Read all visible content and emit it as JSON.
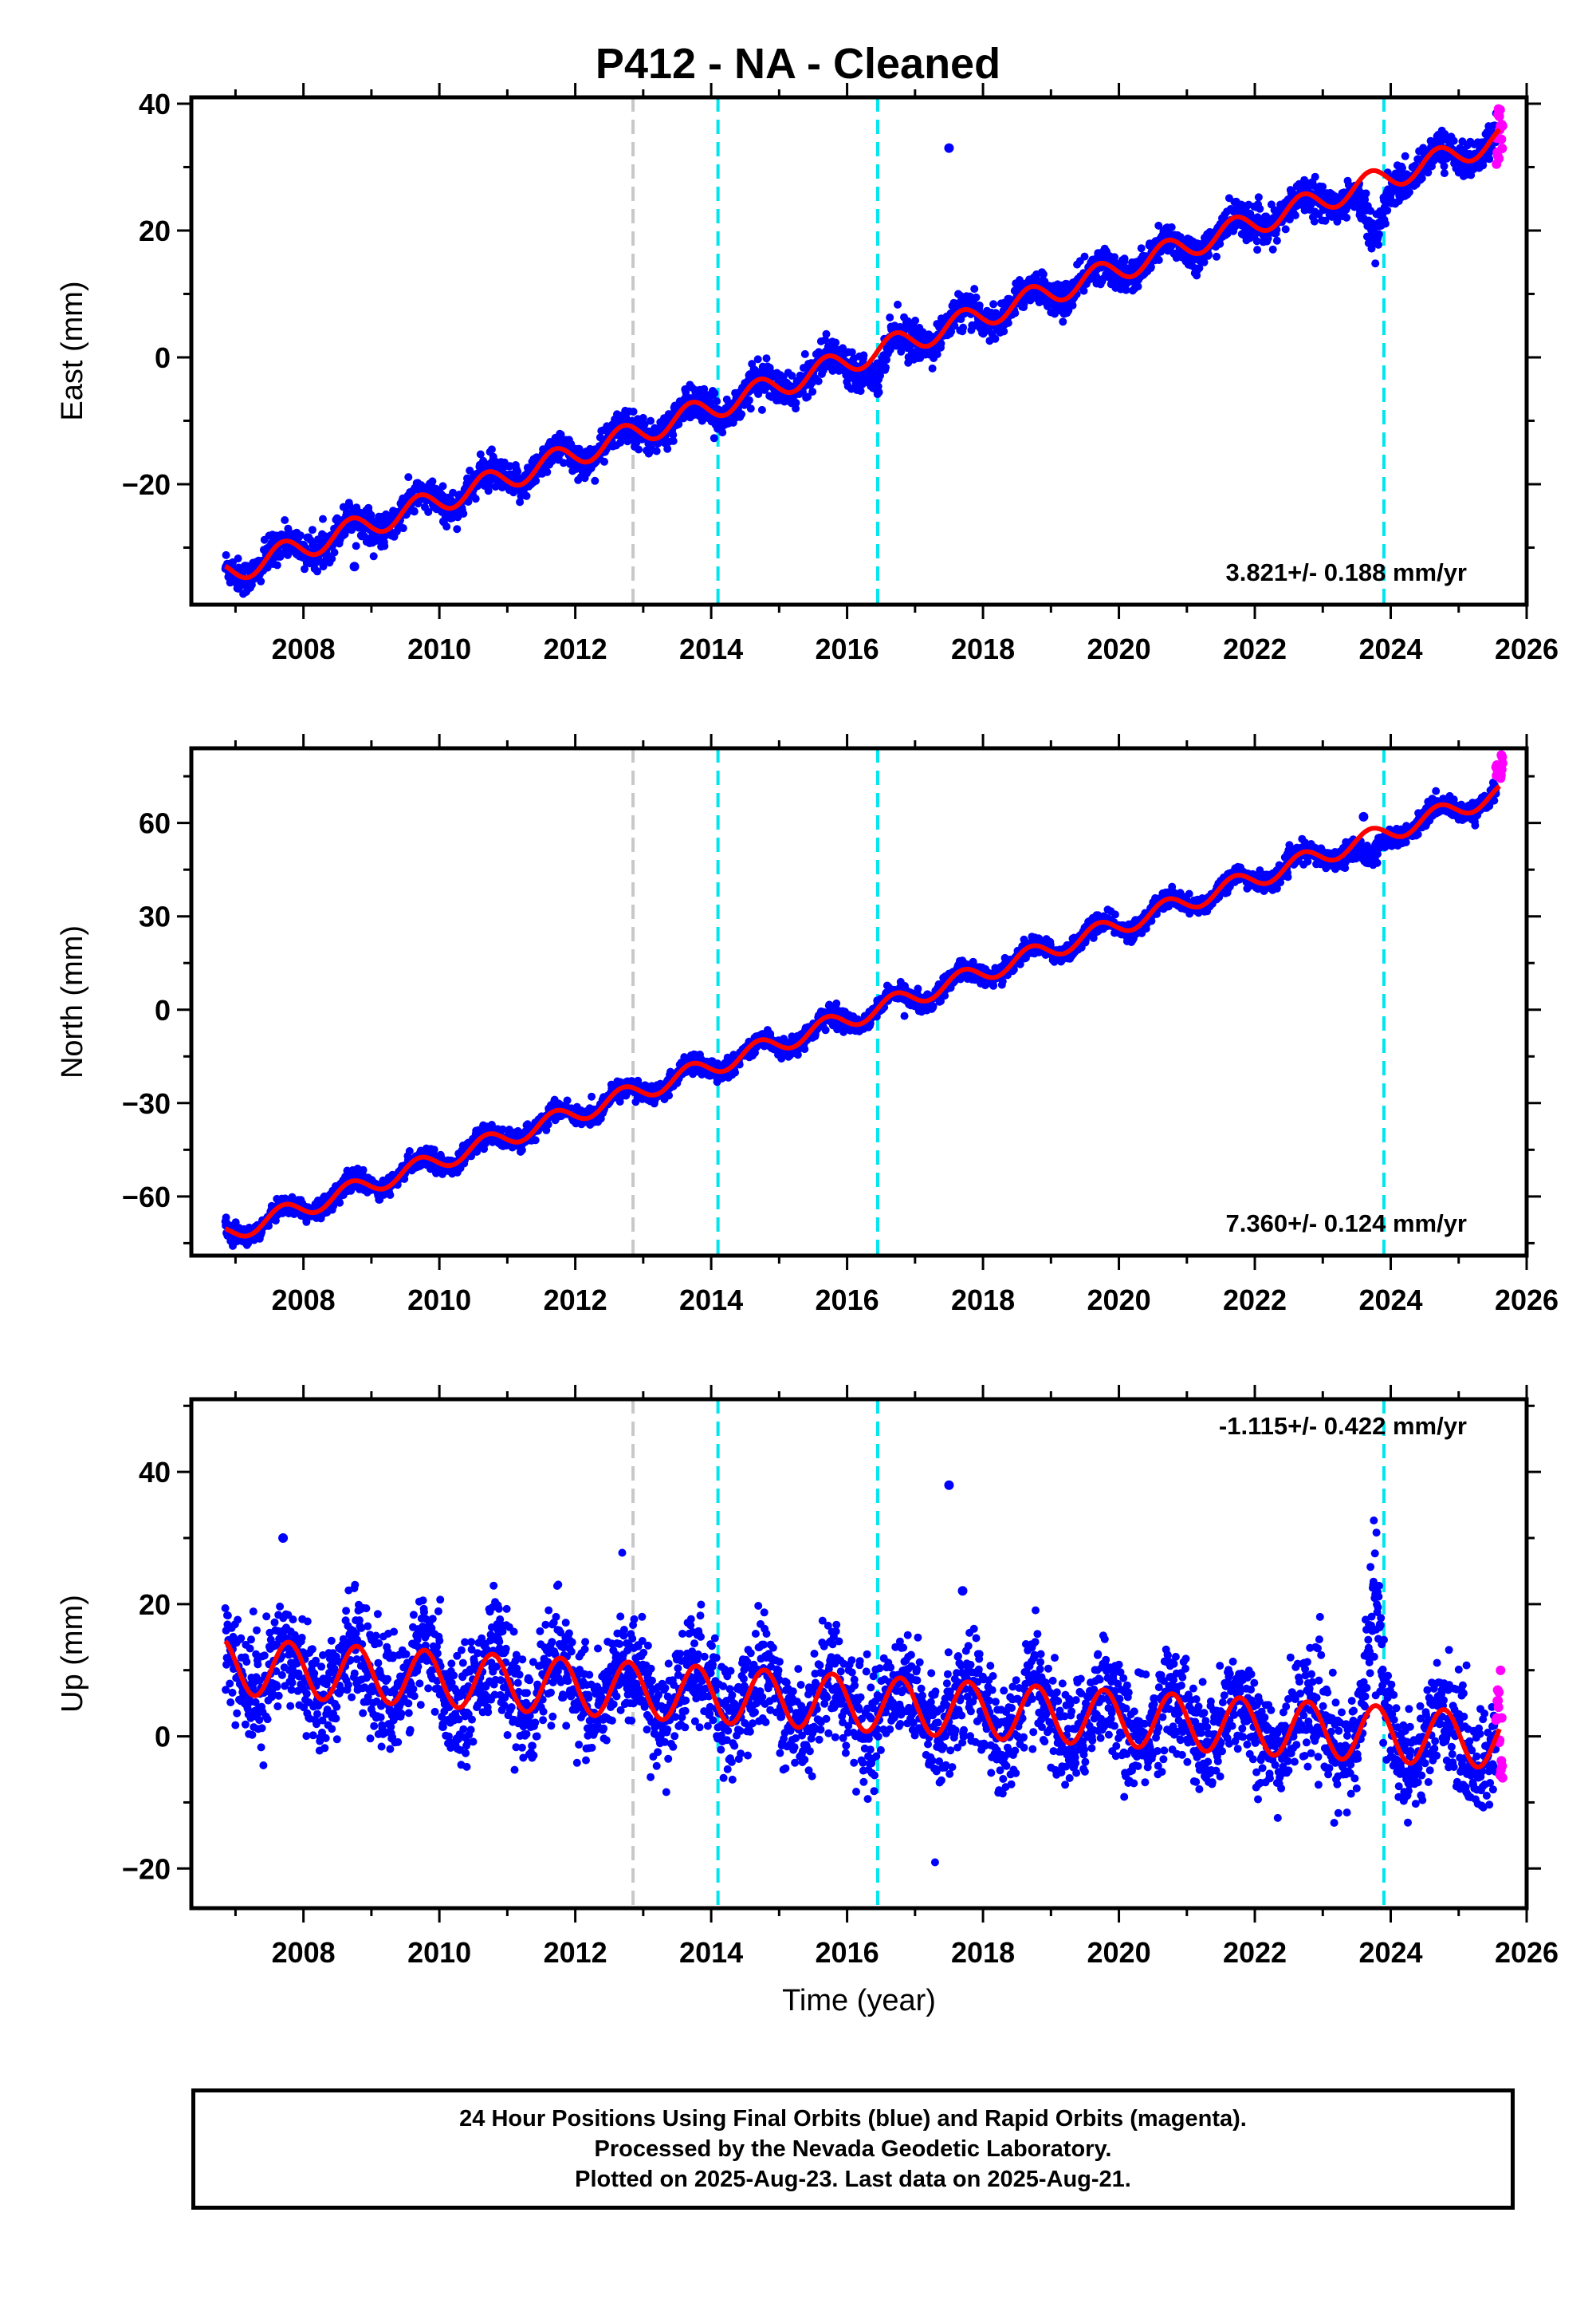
{
  "title": "P412  - NA - Cleaned",
  "colors": {
    "final_orbits": "#0000ff",
    "rapid_orbits": "#ff00ff",
    "model": "#ff0000",
    "offset_antenna": "#c8c8c8",
    "offset_other": "#00e5ee",
    "frame": "#000000"
  },
  "chart_data": [
    {
      "type": "scatter",
      "panel": "east",
      "ylabel": "East (mm)",
      "xlabel": "",
      "xlim": [
        2006.35,
        2026.0
      ],
      "ylim": [
        -39,
        41
      ],
      "xticks": [
        2008,
        2010,
        2012,
        2014,
        2016,
        2018,
        2020,
        2022,
        2024,
        2026
      ],
      "yticks": [
        -20,
        0,
        20,
        40
      ],
      "rate_label": "3.821+/- 0.188 mm/yr",
      "rate_mm_per_yr": 3.821,
      "model": {
        "value_at_2007": -33.5,
        "trend": 3.65,
        "annual_amplitude": 1.9,
        "noise": 1.3
      },
      "offsets": [
        {
          "year": 2012.85,
          "style": "gray"
        },
        {
          "year": 2014.1,
          "style": "cyan"
        },
        {
          "year": 2016.45,
          "style": "cyan"
        },
        {
          "year": 2023.9,
          "style": "cyan"
        }
      ],
      "outliers": [
        {
          "x": 2017.5,
          "y": 33
        },
        {
          "x": 2008.75,
          "y": -33
        }
      ],
      "anomaly": {
        "center": 2023.75,
        "depth": -13,
        "width": 0.18
      },
      "dip": {
        "center": 2016.45,
        "depth": -4,
        "width": 0.12
      },
      "rapid_range": [
        30,
        40
      ]
    },
    {
      "type": "scatter",
      "panel": "north",
      "ylabel": "North (mm)",
      "xlabel": "",
      "xlim": [
        2006.35,
        2026.0
      ],
      "ylim": [
        -79,
        84
      ],
      "xticks": [
        2008,
        2010,
        2012,
        2014,
        2016,
        2018,
        2020,
        2022,
        2024,
        2026
      ],
      "yticks": [
        -60,
        -30,
        0,
        30,
        60
      ],
      "rate_label": "7.360+/- 0.124 mm/yr",
      "rate_mm_per_yr": 7.36,
      "model": {
        "value_at_2007": -71,
        "trend": 7.55,
        "annual_amplitude": 3.0,
        "noise": 1.5
      },
      "offsets": [
        {
          "year": 2012.85,
          "style": "gray"
        },
        {
          "year": 2014.1,
          "style": "cyan"
        },
        {
          "year": 2016.45,
          "style": "cyan"
        },
        {
          "year": 2023.9,
          "style": "cyan"
        }
      ],
      "outliers": [
        {
          "x": 2023.6,
          "y": 62
        }
      ],
      "anomaly": {
        "center": 2023.7,
        "depth": -10,
        "width": 0.2
      },
      "dip": null,
      "rapid_range": [
        74,
        82
      ]
    },
    {
      "type": "scatter",
      "panel": "up",
      "ylabel": "Up (mm)",
      "xlabel": "Time (year)",
      "xlim": [
        2006.35,
        2026.0
      ],
      "ylim": [
        -26,
        51
      ],
      "xticks": [
        2008,
        2010,
        2012,
        2014,
        2016,
        2018,
        2020,
        2022,
        2024,
        2026
      ],
      "yticks": [
        -20,
        0,
        20,
        40
      ],
      "rate_label": "-1.115+/- 0.422 mm/yr",
      "rate_mm_per_yr": -1.115,
      "model": {
        "value_at_2007": 10.5,
        "trend": -0.6,
        "annual_amplitude": 6.5,
        "noise": 4.0
      },
      "offsets": [
        {
          "year": 2012.85,
          "style": "gray"
        },
        {
          "year": 2014.1,
          "style": "cyan"
        },
        {
          "year": 2016.45,
          "style": "cyan"
        },
        {
          "year": 2023.9,
          "style": "cyan"
        }
      ],
      "outliers": [
        {
          "x": 2017.5,
          "y": 38
        },
        {
          "x": 2017.7,
          "y": 22
        },
        {
          "x": 2007.7,
          "y": 30
        }
      ],
      "anomaly": {
        "center": 2023.75,
        "depth": 22,
        "width": 0.12
      },
      "dip": null,
      "rapid_range": [
        -8,
        10
      ]
    }
  ],
  "footer": {
    "line1": "24 Hour Positions Using Final Orbits (blue) and Rapid Orbits (magenta).",
    "line2": "Processed by the Nevada Geodetic Laboratory.",
    "line3": "Plotted on 2025-Aug-23. Last data on 2025-Aug-21."
  }
}
